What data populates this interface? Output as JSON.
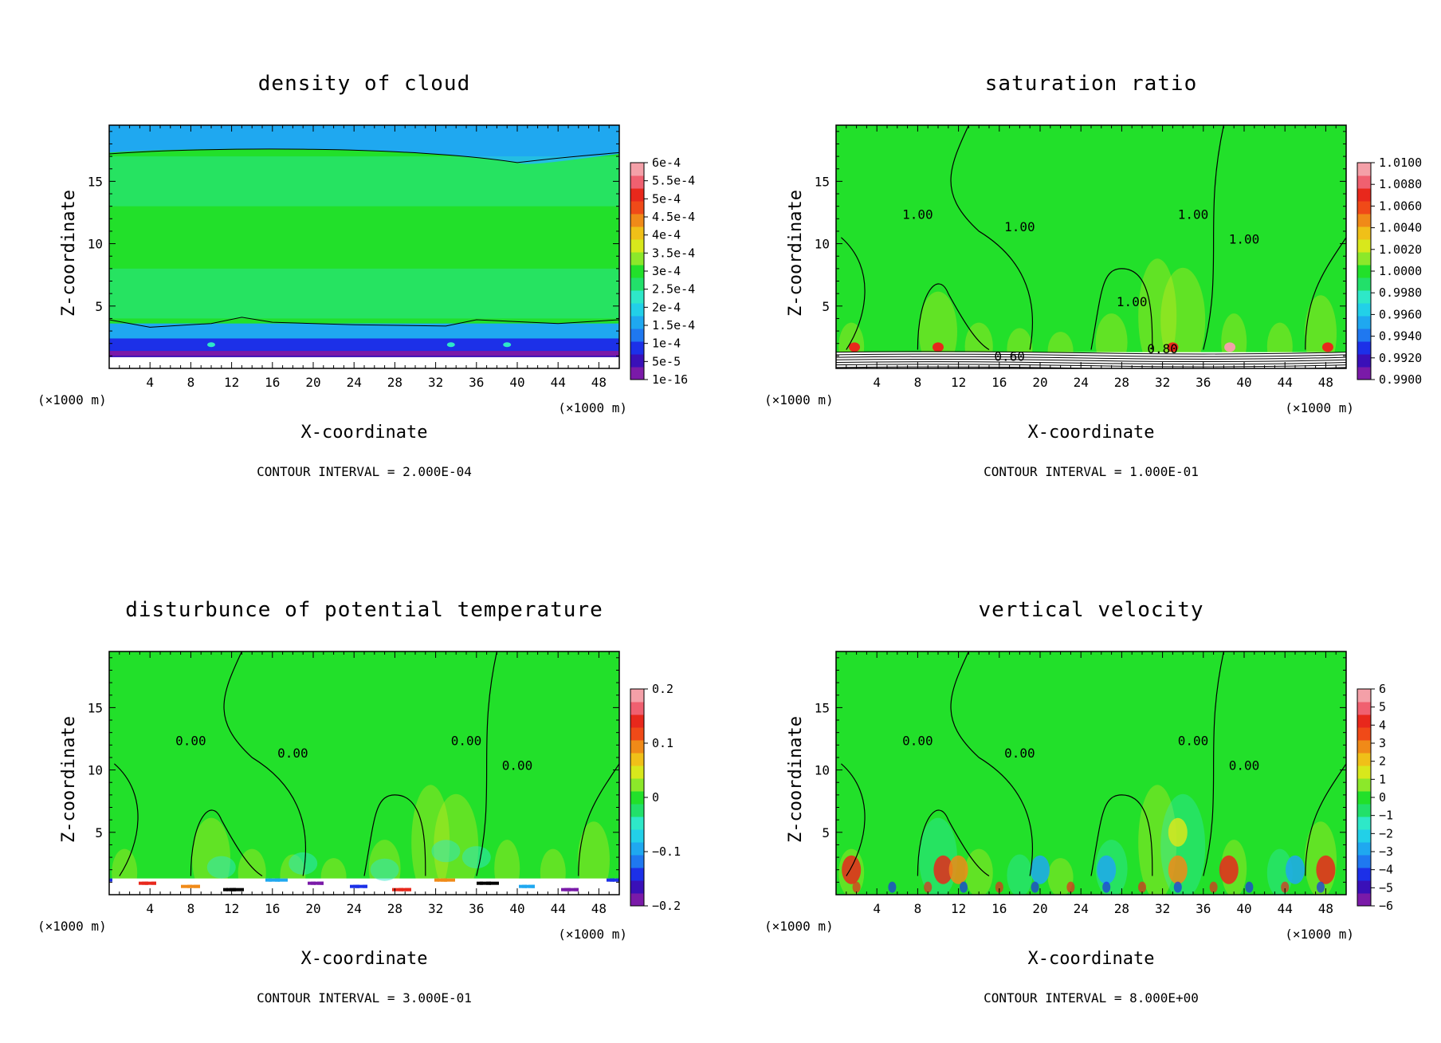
{
  "chart_data": [
    {
      "type": "heatmap",
      "title": "density of cloud",
      "xlabel": "X-coordinate",
      "ylabel": "Z-coordinate",
      "x_units": "(×1000 m)",
      "y_units": "(×1000 m)",
      "x_ticks": [
        "4",
        "8",
        "12",
        "16",
        "20",
        "24",
        "28",
        "32",
        "36",
        "40",
        "44",
        "48"
      ],
      "y_ticks": [
        "5",
        "10",
        "15"
      ],
      "xlim": [
        0,
        50
      ],
      "ylim": [
        0,
        19.5
      ],
      "colorbar_labels": [
        "6e-4",
        "5.5e-4",
        "5e-4",
        "4.5e-4",
        "4e-4",
        "3.5e-4",
        "3e-4",
        "2.5e-4",
        "2e-4",
        "1.5e-4",
        "1e-4",
        "5e-5",
        "1e-16"
      ],
      "contour_interval": "CONTOUR INTERVAL = 2.000E-04",
      "contour_labels": [],
      "field": "cloud"
    },
    {
      "type": "heatmap",
      "title": "saturation ratio",
      "xlabel": "X-coordinate",
      "ylabel": "Z-coordinate",
      "x_units": "(×1000 m)",
      "y_units": "(×1000 m)",
      "x_ticks": [
        "4",
        "8",
        "12",
        "16",
        "20",
        "24",
        "28",
        "32",
        "36",
        "40",
        "44",
        "48"
      ],
      "y_ticks": [
        "5",
        "10",
        "15"
      ],
      "xlim": [
        0,
        50
      ],
      "ylim": [
        0,
        19.5
      ],
      "colorbar_labels": [
        "1.0100",
        "1.0080",
        "1.0060",
        "1.0040",
        "1.0020",
        "1.0000",
        "0.9980",
        "0.9960",
        "0.9940",
        "0.9920",
        "0.9900"
      ],
      "contour_interval": "CONTOUR INTERVAL = 1.000E-01",
      "contour_labels": [
        "1.00",
        "1.00",
        "1.00",
        "1.00",
        "1.00",
        "0.60",
        "0.80"
      ],
      "field": "saturation"
    },
    {
      "type": "heatmap",
      "title": "disturbunce of potential temperature",
      "xlabel": "X-coordinate",
      "ylabel": "Z-coordinate",
      "x_units": "(×1000 m)",
      "y_units": "(×1000 m)",
      "x_ticks": [
        "4",
        "8",
        "12",
        "16",
        "20",
        "24",
        "28",
        "32",
        "36",
        "40",
        "44",
        "48"
      ],
      "y_ticks": [
        "5",
        "10",
        "15"
      ],
      "xlim": [
        0,
        50
      ],
      "ylim": [
        0,
        19.5
      ],
      "colorbar_labels": [
        "0.2",
        "0.1",
        "0",
        "−0.1",
        "−0.2"
      ],
      "contour_interval": "CONTOUR INTERVAL = 3.000E-01",
      "contour_labels": [
        "0.00",
        "0.00",
        "0.00",
        "0.00"
      ],
      "field": "theta"
    },
    {
      "type": "heatmap",
      "title": "vertical velocity",
      "xlabel": "X-coordinate",
      "ylabel": "Z-coordinate",
      "x_units": "(×1000 m)",
      "y_units": "(×1000 m)",
      "x_ticks": [
        "4",
        "8",
        "12",
        "16",
        "20",
        "24",
        "28",
        "32",
        "36",
        "40",
        "44",
        "48"
      ],
      "y_ticks": [
        "5",
        "10",
        "15"
      ],
      "xlim": [
        0,
        50
      ],
      "ylim": [
        0,
        19.5
      ],
      "colorbar_labels": [
        "6",
        "5",
        "4",
        "3",
        "2",
        "1",
        "0",
        "−1",
        "−2",
        "−3",
        "−4",
        "−5",
        "−6"
      ],
      "contour_interval": "CONTOUR INTERVAL = 8.000E+00",
      "contour_labels": [
        "0.00",
        "0.00",
        "0.00",
        "0.00"
      ],
      "field": "velocity"
    }
  ],
  "colors": {
    "background_green": "#22e02a",
    "blue": "#1c30e8",
    "light_blue": "#1fa8f0",
    "cyan": "#2ee8c8",
    "purple": "#7a1aa8",
    "red": "#e8281c",
    "orange": "#f08a18",
    "yellow": "#d8e81c",
    "pink": "#f4a0a8"
  }
}
